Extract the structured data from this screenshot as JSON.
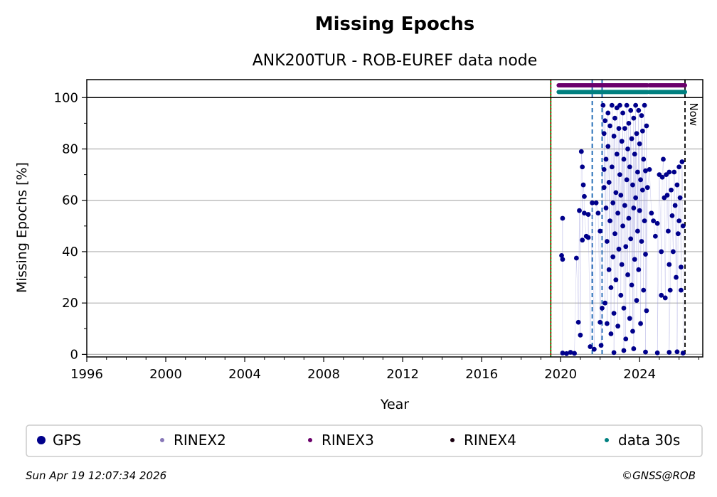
{
  "chart_data": {
    "type": "scatter",
    "title": "Missing Epochs",
    "subtitle": "ANK200TUR - ROB-EUREF data node",
    "xlabel": "Year",
    "ylabel": "Missing Epochs [%]",
    "xlim": [
      1996,
      2027.2
    ],
    "ylim": [
      -1,
      107
    ],
    "x_ticks": [
      "1996",
      "2000",
      "2004",
      "2008",
      "2012",
      "2016",
      "2020",
      "2024"
    ],
    "y_ticks": [
      "0",
      "20",
      "40",
      "60",
      "80",
      "100"
    ],
    "grid": true,
    "legend_position": "bottom",
    "legend": [
      {
        "label": "GPS",
        "color": "#00008b"
      },
      {
        "label": "RINEX2",
        "color": "#8878b8"
      },
      {
        "label": "RINEX3",
        "color": "#6b006b"
      },
      {
        "label": "RINEX4",
        "color": "#1a0010"
      },
      {
        "label": "data 30s",
        "color": "#008080"
      }
    ],
    "now_label": "Now",
    "vertical_lines": [
      {
        "x": 2019.5,
        "color": "#008000",
        "style": "solid"
      },
      {
        "x": 2019.5,
        "color": "#cc0000",
        "style": "dotted"
      },
      {
        "x": 2021.6,
        "color": "#1060b0",
        "style": "dashed"
      },
      {
        "x": 2022.1,
        "color": "#1060b0",
        "style": "dashed"
      },
      {
        "x": 2026.3,
        "color": "#000000",
        "style": "dashed"
      }
    ],
    "availability_bars": [
      {
        "name": "RINEX3",
        "color": "#6b006b",
        "y": 104.8,
        "segments": [
          [
            2019.9,
            2024.4
          ],
          [
            2024.5,
            2026.3
          ]
        ]
      },
      {
        "name": "data 30s",
        "color": "#008080",
        "y": 102.2,
        "segments": [
          [
            2019.9,
            2024.4
          ],
          [
            2024.5,
            2026.3
          ]
        ]
      }
    ],
    "series": [
      {
        "name": "GPS",
        "color": "#00008b",
        "points": [
          [
            2020.05,
            38.5
          ],
          [
            2020.1,
            37.0
          ],
          [
            2020.1,
            53.0
          ],
          [
            2020.1,
            0.5
          ],
          [
            2020.3,
            0.3
          ],
          [
            2020.5,
            0.8
          ],
          [
            2020.7,
            0.4
          ],
          [
            2020.8,
            37.5
          ],
          [
            2020.9,
            12.5
          ],
          [
            2020.95,
            56.0
          ],
          [
            2021.0,
            7.5
          ],
          [
            2021.05,
            79.0
          ],
          [
            2021.1,
            73.0
          ],
          [
            2021.1,
            44.5
          ],
          [
            2021.15,
            66.0
          ],
          [
            2021.2,
            61.5
          ],
          [
            2021.2,
            55.0
          ],
          [
            2021.3,
            46.0
          ],
          [
            2021.4,
            45.5
          ],
          [
            2021.4,
            54.5
          ],
          [
            2021.5,
            3.0
          ],
          [
            2021.6,
            59.0
          ],
          [
            2021.7,
            2.0
          ],
          [
            2021.8,
            59.0
          ],
          [
            2021.9,
            55.0
          ],
          [
            2022.0,
            12.5
          ],
          [
            2022.0,
            48.0
          ],
          [
            2022.05,
            3.5
          ],
          [
            2022.1,
            18.0
          ],
          [
            2022.15,
            97.0
          ],
          [
            2022.2,
            86.0
          ],
          [
            2022.2,
            72.0
          ],
          [
            2022.2,
            65.0
          ],
          [
            2022.25,
            91.0
          ],
          [
            2022.25,
            20.0
          ],
          [
            2022.3,
            76.0
          ],
          [
            2022.3,
            57.0
          ],
          [
            2022.35,
            44.0
          ],
          [
            2022.35,
            12.0
          ],
          [
            2022.4,
            94.0
          ],
          [
            2022.4,
            81.0
          ],
          [
            2022.45,
            67.0
          ],
          [
            2022.45,
            33.0
          ],
          [
            2022.5,
            89.0
          ],
          [
            2022.5,
            52.0
          ],
          [
            2022.55,
            26.0
          ],
          [
            2022.55,
            8.0
          ],
          [
            2022.6,
            97.0
          ],
          [
            2022.6,
            73.0
          ],
          [
            2022.65,
            59.0
          ],
          [
            2022.65,
            38.0
          ],
          [
            2022.7,
            85.0
          ],
          [
            2022.7,
            16.0
          ],
          [
            2022.75,
            92.0
          ],
          [
            2022.75,
            47.0
          ],
          [
            2022.8,
            63.0
          ],
          [
            2022.8,
            29.0
          ],
          [
            2022.85,
            96.0
          ],
          [
            2022.85,
            78.0
          ],
          [
            2022.9,
            55.0
          ],
          [
            2022.9,
            11.0
          ],
          [
            2022.95,
            88.0
          ],
          [
            2022.95,
            41.0
          ],
          [
            2023.0,
            97.0
          ],
          [
            2023.0,
            70.0
          ],
          [
            2023.05,
            62.0
          ],
          [
            2023.05,
            23.0
          ],
          [
            2023.1,
            83.0
          ],
          [
            2023.1,
            35.0
          ],
          [
            2023.15,
            94.0
          ],
          [
            2023.15,
            50.0
          ],
          [
            2023.2,
            76.0
          ],
          [
            2023.2,
            18.0
          ],
          [
            2023.25,
            88.0
          ],
          [
            2023.25,
            58.0
          ],
          [
            2023.3,
            42.0
          ],
          [
            2023.3,
            6.0
          ],
          [
            2023.35,
            97.0
          ],
          [
            2023.35,
            68.0
          ],
          [
            2023.4,
            80.0
          ],
          [
            2023.4,
            31.0
          ],
          [
            2023.45,
            90.0
          ],
          [
            2023.45,
            53.0
          ],
          [
            2023.5,
            73.0
          ],
          [
            2023.5,
            14.0
          ],
          [
            2023.55,
            95.0
          ],
          [
            2023.55,
            45.0
          ],
          [
            2023.6,
            84.0
          ],
          [
            2023.6,
            27.0
          ],
          [
            2023.65,
            66.0
          ],
          [
            2023.65,
            9.0
          ],
          [
            2023.7,
            92.0
          ],
          [
            2023.7,
            57.0
          ],
          [
            2023.75,
            78.0
          ],
          [
            2023.75,
            37.0
          ],
          [
            2023.8,
            97.0
          ],
          [
            2023.8,
            61.0
          ],
          [
            2023.85,
            86.0
          ],
          [
            2023.85,
            21.0
          ],
          [
            2023.9,
            71.0
          ],
          [
            2023.9,
            48.0
          ],
          [
            2023.95,
            95.0
          ],
          [
            2023.95,
            33.0
          ],
          [
            2024.0,
            82.0
          ],
          [
            2024.0,
            56.0
          ],
          [
            2024.05,
            68.0
          ],
          [
            2024.05,
            12.0
          ],
          [
            2024.1,
            93.0
          ],
          [
            2024.1,
            44.0
          ],
          [
            2024.15,
            87.0
          ],
          [
            2024.15,
            64.0
          ],
          [
            2024.2,
            76.0
          ],
          [
            2024.2,
            25.0
          ],
          [
            2024.25,
            97.0
          ],
          [
            2024.25,
            52.0
          ],
          [
            2024.3,
            71.5
          ],
          [
            2024.3,
            39.0
          ],
          [
            2024.35,
            89.0
          ],
          [
            2024.35,
            17.0
          ],
          [
            2024.4,
            65.0
          ],
          [
            2024.5,
            72.0
          ],
          [
            2024.6,
            55.0
          ],
          [
            2024.7,
            52.0
          ],
          [
            2024.8,
            46.0
          ],
          [
            2024.9,
            51.0
          ],
          [
            2025.0,
            70.0
          ],
          [
            2025.1,
            40.0
          ],
          [
            2025.1,
            23.0
          ],
          [
            2025.15,
            69.0
          ],
          [
            2025.2,
            76.0
          ],
          [
            2025.25,
            61.0
          ],
          [
            2025.3,
            22.0
          ],
          [
            2025.35,
            70.0
          ],
          [
            2025.4,
            62.0
          ],
          [
            2025.45,
            48.0
          ],
          [
            2025.5,
            71.0
          ],
          [
            2025.5,
            35.0
          ],
          [
            2025.55,
            25.0
          ],
          [
            2025.6,
            64.0
          ],
          [
            2025.65,
            54.0
          ],
          [
            2025.7,
            40.0
          ],
          [
            2025.75,
            71.0
          ],
          [
            2025.8,
            58.0
          ],
          [
            2025.85,
            30.0
          ],
          [
            2025.9,
            66.0
          ],
          [
            2025.95,
            47.0
          ],
          [
            2026.0,
            73.0
          ],
          [
            2026.0,
            52.0
          ],
          [
            2026.05,
            61.0
          ],
          [
            2026.1,
            34.0
          ],
          [
            2026.1,
            25.0
          ],
          [
            2026.15,
            75.0
          ],
          [
            2026.2,
            50.0
          ],
          [
            2026.2,
            0.5
          ],
          [
            2025.9,
            1.0
          ],
          [
            2025.5,
            0.8
          ],
          [
            2024.9,
            0.6
          ],
          [
            2023.2,
            1.5
          ],
          [
            2022.7,
            0.7
          ],
          [
            2023.7,
            2.2
          ],
          [
            2024.3,
            0.9
          ]
        ]
      }
    ]
  },
  "footer": {
    "timestamp": "Sun Apr 19 12:07:34 2026",
    "copyright": "©GNSS@ROB"
  }
}
